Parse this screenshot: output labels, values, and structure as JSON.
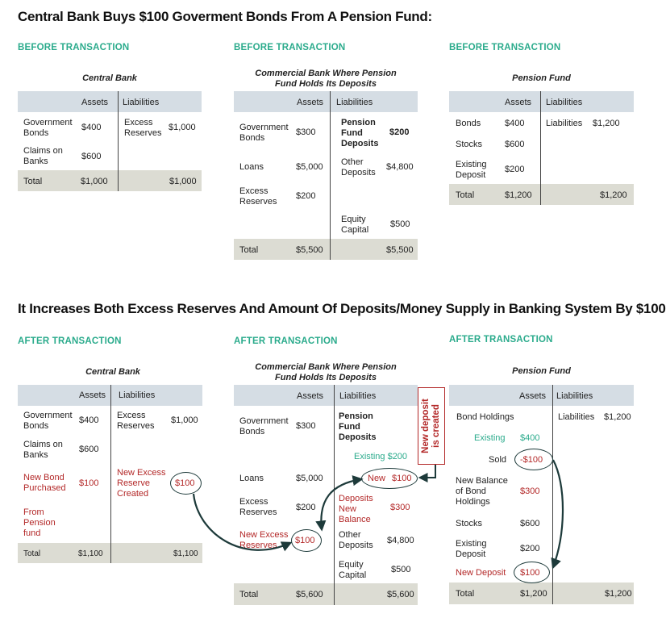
{
  "title_top": "Central Bank Buys $100 Goverment Bonds From A Pension Fund:",
  "title_mid": "It Increases Both Excess Reserves And Amount Of Deposits/Money Supply in Banking System By $100",
  "before_label": "BEFORE TRANSACTION",
  "after_label": "AFTER TRANSACTION",
  "col_assets": "Assets",
  "col_liabilities": "Liabilities",
  "total_label": "Total",
  "before": {
    "cb": {
      "title": "Central Bank",
      "gov_bonds": "Government\nBonds",
      "gov_bonds_val": "$400",
      "claims": "Claims on\nBanks",
      "claims_val": "$600",
      "excess": "Excess\nReserves",
      "excess_val": "$1,000",
      "total_assets": "$1,000",
      "total_liab": "$1,000"
    },
    "comm": {
      "title": "Commercial Bank Where Pension\nFund Holds Its Deposits",
      "gov_bonds": "Government\nBonds",
      "gov_bonds_val": "$300",
      "loans": "Loans",
      "loans_val": "$5,000",
      "excess": "Excess\nReserves",
      "excess_val": "$200",
      "pension_dep": "Pension\nFund\nDeposits",
      "pension_dep_val": "$200",
      "other_dep": "Other\nDeposits",
      "other_dep_val": "$4,800",
      "equity": "Equity\nCapital",
      "equity_val": "$500",
      "total_assets": "$5,500",
      "total_liab": "$5,500"
    },
    "pf": {
      "title": "Pension Fund",
      "bonds": "Bonds",
      "bonds_val": "$400",
      "stocks": "Stocks",
      "stocks_val": "$600",
      "existing": "Existing\nDeposit",
      "existing_val": "$200",
      "liab": "Liabilities",
      "liab_val": "$1,200",
      "total_assets": "$1,200",
      "total_liab": "$1,200"
    }
  },
  "after": {
    "cb": {
      "title": "Central Bank",
      "gov_bonds": "Government\nBonds",
      "gov_bonds_val": "$400",
      "claims": "Claims on\nBanks",
      "claims_val": "$600",
      "new_bond": "New Bond\nPurchased",
      "new_bond_val": "$100",
      "from_pf": "From\nPension\nfund",
      "excess": "Excess\nReserves",
      "excess_val": "$1,000",
      "new_excess": "New Excess\nReserve\nCreated",
      "new_excess_val": "$100",
      "total_assets": "$1,100",
      "total_liab": "$1,100"
    },
    "comm": {
      "title": "Commercial Bank Where Pension\nFund Holds Its Deposits",
      "gov_bonds": "Government\nBonds",
      "gov_bonds_val": "$300",
      "loans": "Loans",
      "loans_val": "$5,000",
      "excess": "Excess\nReserves",
      "excess_val": "$200",
      "new_excess": "New Excess\nReserves",
      "new_excess_val": "$100",
      "pension_dep": "Pension\nFund\nDeposits",
      "existing": "Existing $200",
      "new_label": "New",
      "new_val": "$100",
      "dep_new_bal": "Deposits\nNew\nBalance",
      "dep_new_bal_val": "$300",
      "other_dep": "Other\nDeposits",
      "other_dep_val": "$4,800",
      "equity": "Equity\nCapital",
      "equity_val": "$500",
      "total_assets": "$5,600",
      "total_liab": "$5,600",
      "callout": "New deposit\nis created"
    },
    "pf": {
      "title": "Pension Fund",
      "bond_holdings": "Bond Holdings",
      "existing": "Existing",
      "existing_val": "$400",
      "sold": "Sold",
      "sold_val": "-$100",
      "new_balance": "New Balance\nof Bond\nHoldings",
      "new_balance_val": "$300",
      "stocks": "Stocks",
      "stocks_val": "$600",
      "existing_dep": "Existing\nDeposit",
      "existing_dep_val": "$200",
      "new_deposit": "New Deposit",
      "new_deposit_val": "$100",
      "liab": "Liabilities",
      "liab_val": "$1,200",
      "total_assets": "$1,200",
      "total_liab": "$1,200"
    }
  },
  "colors": {
    "accent_green": "#2bab8c",
    "red": "#b32828",
    "header_band": "#d5dde4",
    "total_band": "#dcdcd3",
    "arrow": "#1d3a3a"
  }
}
